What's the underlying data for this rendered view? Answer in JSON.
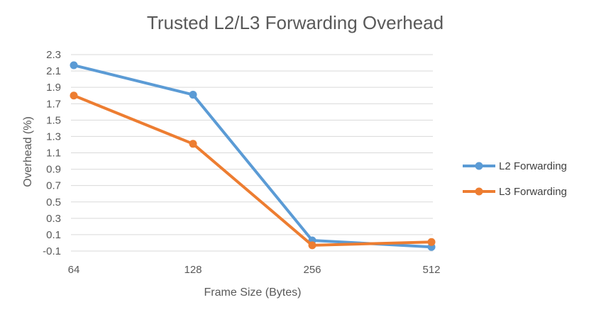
{
  "chart_data": {
    "type": "line",
    "title": "Trusted L2/L3 Forwarding Overhead",
    "xlabel": "Frame Size (Bytes)",
    "ylabel": "Overhead (%)",
    "categories": [
      "64",
      "128",
      "256",
      "512"
    ],
    "ylim": [
      -0.1,
      2.3
    ],
    "yticks": [
      "2.3",
      "2.1",
      "1.9",
      "1.7",
      "1.5",
      "1.3",
      "1.1",
      "0.9",
      "0.7",
      "0.5",
      "0.3",
      "0.1",
      "-0.1"
    ],
    "grid": true,
    "legend_position": "right",
    "series": [
      {
        "name": "L2 Forwarding",
        "color": "#5b9bd5",
        "values": [
          2.17,
          1.81,
          0.03,
          -0.05
        ]
      },
      {
        "name": "L3 Forwarding",
        "color": "#ed7d31",
        "values": [
          1.8,
          1.21,
          -0.03,
          0.01
        ]
      }
    ]
  }
}
